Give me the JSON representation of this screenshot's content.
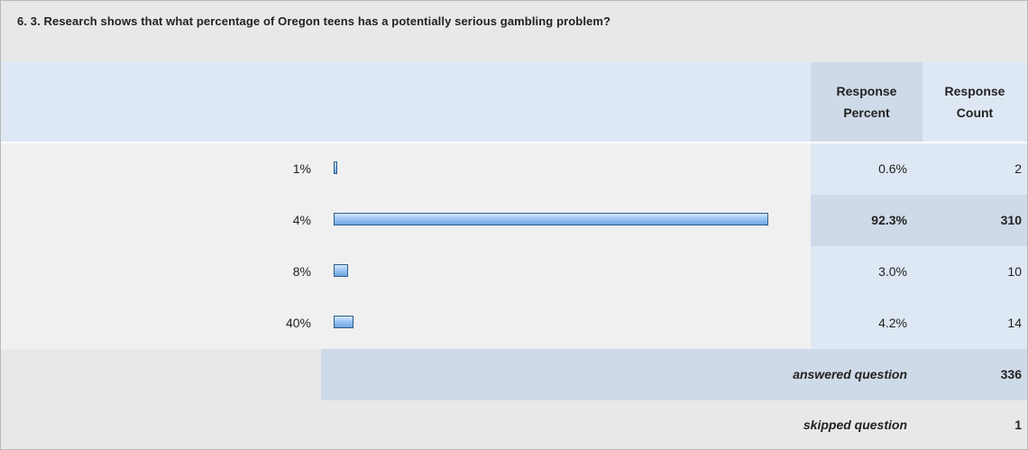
{
  "question": {
    "title": "6. 3. Research shows that what percentage of Oregon teens has a potentially serious gambling problem?"
  },
  "columns": {
    "percent_line1": "Response",
    "percent_line2": "Percent",
    "count_line1": "Response",
    "count_line2": "Count"
  },
  "chart_data": {
    "type": "bar",
    "orientation": "horizontal",
    "categories": [
      "1%",
      "4%",
      "8%",
      "40%"
    ],
    "values": [
      0.6,
      92.3,
      3.0,
      4.2
    ],
    "value_unit": "percent",
    "xlim": [
      0,
      100
    ],
    "grid": false,
    "legend": "none",
    "rows": [
      {
        "label": "1%",
        "percent": "0.6%",
        "count": "2"
      },
      {
        "label": "4%",
        "percent": "92.3%",
        "count": "310"
      },
      {
        "label": "8%",
        "percent": "3.0%",
        "count": "10"
      },
      {
        "label": "40%",
        "percent": "4.2%",
        "count": "14"
      }
    ]
  },
  "summary": {
    "answered_label": "answered question",
    "answered_value": "336",
    "skipped_label": "skipped question",
    "skipped_value": "1"
  }
}
